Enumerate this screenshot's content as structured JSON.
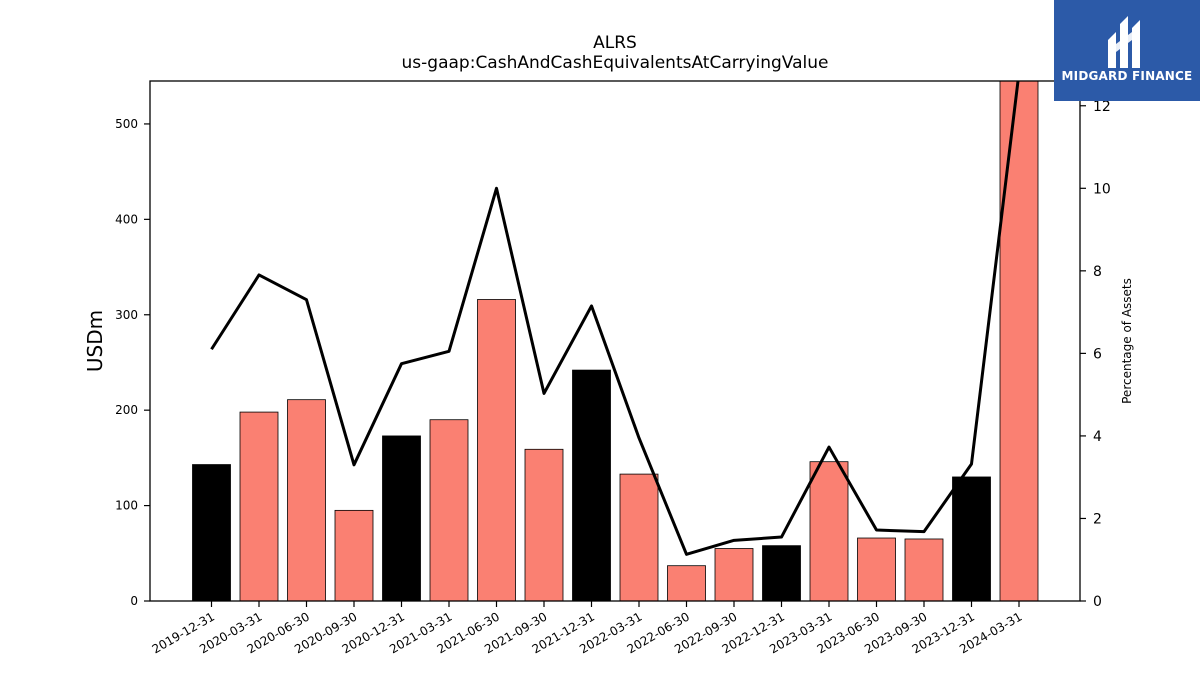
{
  "chart_data": {
    "type": "bar",
    "title": "ALRS",
    "subtitle": "us-gaap:CashAndCashEquivalentsAtCarryingValue",
    "ylabel": "USDm",
    "y2label": "Percentage of Assets",
    "ylim": [
      0,
      545
    ],
    "y2lim": [
      0,
      12.6
    ],
    "yticks": [
      0,
      100,
      200,
      300,
      400,
      500
    ],
    "y2ticks": [
      0,
      2,
      4,
      6,
      8,
      10,
      12
    ],
    "categories": [
      "2019-12-31",
      "2020-03-31",
      "2020-06-30",
      "2020-09-30",
      "2020-12-31",
      "2021-03-31",
      "2021-06-30",
      "2021-09-30",
      "2021-12-31",
      "2022-03-31",
      "2022-06-30",
      "2022-09-30",
      "2022-12-31",
      "2023-03-31",
      "2023-06-30",
      "2023-09-30",
      "2023-12-31",
      "2024-03-31"
    ],
    "series": [
      {
        "type": "bar",
        "values": [
          143,
          198,
          211,
          95,
          173,
          190,
          316,
          159,
          242,
          133,
          37,
          55,
          58,
          146,
          66,
          65,
          130,
          550
        ],
        "colors": [
          "#000000",
          "#fa8072",
          "#fa8072",
          "#fa8072",
          "#000000",
          "#fa8072",
          "#fa8072",
          "#fa8072",
          "#000000",
          "#fa8072",
          "#fa8072",
          "#fa8072",
          "#000000",
          "#fa8072",
          "#fa8072",
          "#fa8072",
          "#000000",
          "#fa8072"
        ]
      },
      {
        "type": "line",
        "axis": "right",
        "values": [
          6.1,
          7.9,
          7.3,
          3.3,
          5.75,
          6.05,
          10.0,
          5.03,
          7.15,
          3.95,
          1.13,
          1.47,
          1.55,
          3.73,
          1.72,
          1.68,
          3.32,
          12.8
        ],
        "color": "#000000"
      }
    ],
    "grid": false
  },
  "logo": {
    "text": "MIDGARD FINANCE"
  }
}
